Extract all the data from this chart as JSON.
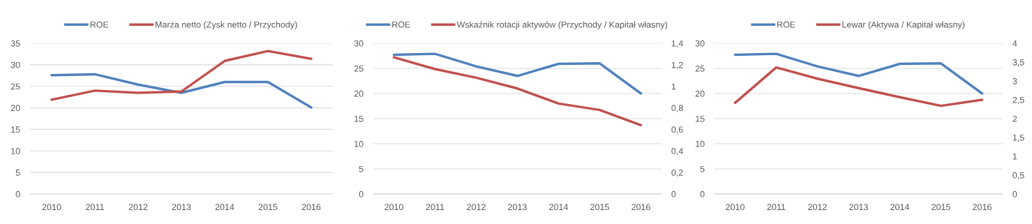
{
  "chart_data": [
    {
      "type": "line",
      "categories": [
        "2010",
        "2011",
        "2012",
        "2013",
        "2014",
        "2015",
        "2016"
      ],
      "ylim": [
        0,
        35
      ],
      "yticks": [
        0,
        5,
        10,
        15,
        20,
        25,
        30,
        35
      ],
      "grid": "y",
      "legend": "top",
      "series": [
        {
          "name": "ROE",
          "color": "#4f81bd",
          "values": [
            27.6,
            27.8,
            25.4,
            23.5,
            26.0,
            26.0,
            20.1
          ]
        },
        {
          "name": "Marża netto (Zysk netto / Przychody)",
          "color": "#c0504d",
          "values": [
            21.9,
            24.0,
            23.5,
            23.8,
            30.9,
            33.2,
            31.4
          ]
        }
      ]
    },
    {
      "type": "line",
      "categories": [
        "2010",
        "2011",
        "2012",
        "2013",
        "2014",
        "2015",
        "2016"
      ],
      "ylim": [
        0,
        30
      ],
      "yticks": [
        0,
        5,
        10,
        15,
        20,
        25,
        30
      ],
      "y2lim": [
        0,
        1.4
      ],
      "y2ticks": [
        0,
        {
          "value": 0.2,
          "label": "0,2"
        },
        {
          "value": 0.4,
          "label": "0,4"
        },
        {
          "value": 0.6,
          "label": "0,6"
        },
        {
          "value": 0.8,
          "label": "0,8"
        },
        1,
        {
          "value": 1.2,
          "label": "1,2"
        },
        {
          "value": 1.4,
          "label": "1,4"
        }
      ],
      "grid": "y",
      "legend": "top",
      "series": [
        {
          "name": "ROE",
          "color": "#4f81bd",
          "values": [
            27.7,
            27.9,
            25.4,
            23.5,
            25.9,
            26.0,
            20.0
          ]
        },
        {
          "name": "Wskaźnik rotacji aktywów (Przychody / Kapitał własny)",
          "color": "#c0504d",
          "axis": "y2",
          "values": [
            1.27,
            1.16,
            1.08,
            0.98,
            0.84,
            0.78,
            0.64
          ]
        }
      ]
    },
    {
      "type": "line",
      "categories": [
        "2010",
        "2011",
        "2012",
        "2013",
        "2014",
        "2015",
        "2016"
      ],
      "ylim": [
        0,
        30
      ],
      "yticks": [
        0,
        5,
        10,
        15,
        20,
        25,
        30
      ],
      "y2lim": [
        0,
        4
      ],
      "y2ticks": [
        0,
        {
          "value": 0.5,
          "label": "0,5"
        },
        1,
        {
          "value": 1.5,
          "label": "1,5"
        },
        2,
        {
          "value": 2.5,
          "label": "2,5"
        },
        3,
        {
          "value": 3.5,
          "label": "3,5"
        },
        4
      ],
      "grid": "y",
      "legend": "top",
      "series": [
        {
          "name": "ROE",
          "color": "#4f81bd",
          "values": [
            27.7,
            27.9,
            25.4,
            23.5,
            25.9,
            26.0,
            20.0
          ]
        },
        {
          "name": "Lewar (Aktywa / Kapitał własny)",
          "color": "#c0504d",
          "axis": "y2",
          "values": [
            2.42,
            3.36,
            3.06,
            2.81,
            2.57,
            2.34,
            2.5
          ]
        }
      ]
    }
  ]
}
